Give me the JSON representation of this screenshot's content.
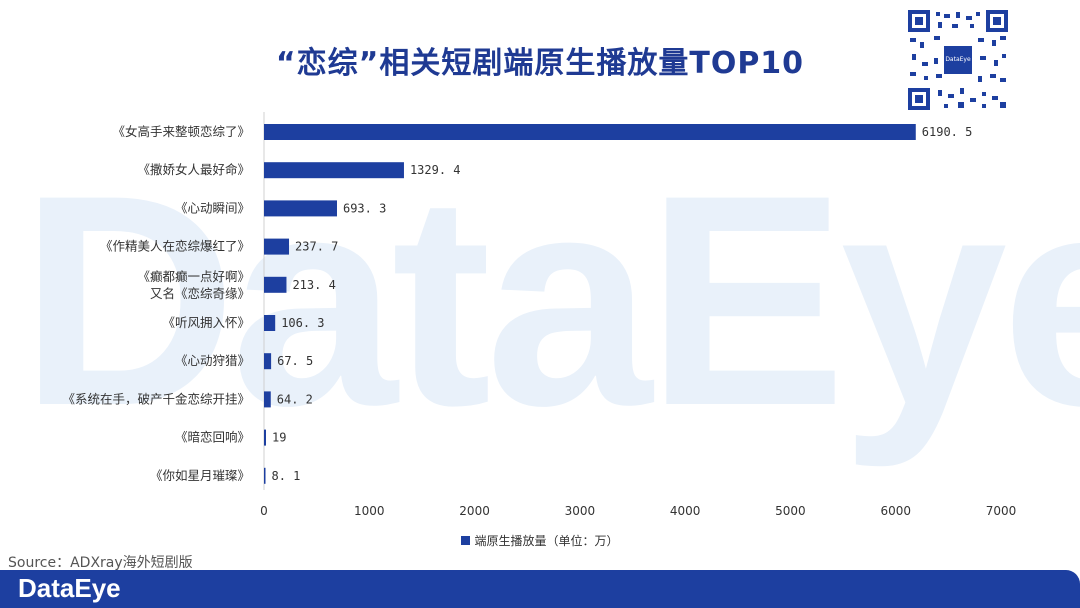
{
  "watermark": "DataEye",
  "title": "“恋综”相关短剧端原生播放量TOP10",
  "qr": {
    "logo_text": "DataEye"
  },
  "source": "Source：ADXray海外短剧版",
  "brand": "DataEye",
  "colors": {
    "bar": "#1d3fa0",
    "title": "#1f3a93",
    "footer": "#1d3fa0",
    "watermark": "#e9f1fa"
  },
  "chart_data": {
    "type": "bar",
    "orientation": "horizontal",
    "categories": [
      "《女高手来整顿恋综了》",
      "《撒娇女人最好命》",
      "《心动瞬间》",
      "《作精美人在恋综爆红了》",
      "《癫都癫一点好啊》\n又名《恋综奇缘》",
      "《听风拥入怀》",
      "《心动狩猎》",
      "《系统在手，破产千金恋综开挂》",
      "《暗恋回响》",
      "《你如星月璀璨》"
    ],
    "series": [
      {
        "name": "端原生播放量（单位：万）",
        "values": [
          6190.5,
          1329.4,
          693.3,
          237.7,
          213.4,
          106.3,
          67.5,
          64.2,
          19,
          8.1
        ]
      }
    ],
    "value_labels": [
      "6190. 5",
      "1329. 4",
      "693. 3",
      "237. 7",
      "213. 4",
      "106. 3",
      "67. 5",
      "64. 2",
      "19",
      "8. 1"
    ],
    "xticks": [
      0,
      1000,
      2000,
      3000,
      4000,
      5000,
      6000,
      7000
    ],
    "xlim": [
      0,
      7000
    ],
    "legend_position": "bottom",
    "grid": false
  }
}
